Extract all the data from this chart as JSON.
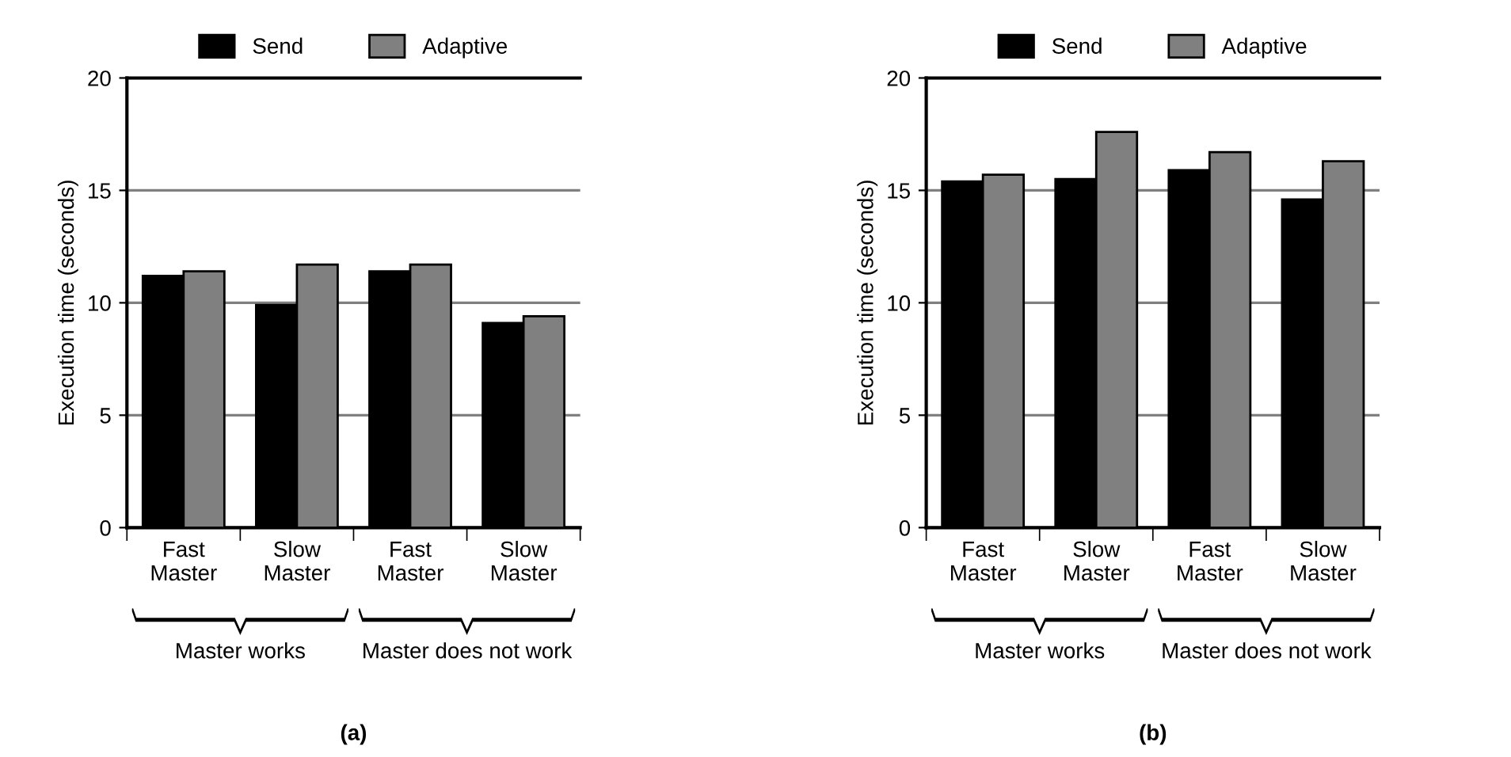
{
  "chart_data": [
    {
      "type": "bar",
      "title": "(a)",
      "ylabel": "Execution time (seconds)",
      "categories": [
        "Fast\nMaster",
        "Slow\nMaster",
        "Fast\nMaster",
        "Slow\nMaster"
      ],
      "series": [
        {
          "name": "Send",
          "color": "#000000",
          "values": [
            11.2,
            9.9,
            11.4,
            9.1
          ]
        },
        {
          "name": "Adaptive",
          "color": "#808080",
          "values": [
            11.4,
            11.7,
            11.7,
            9.4
          ]
        }
      ],
      "annotations": [
        "Master works",
        "Master does not work"
      ],
      "ylim": [
        0,
        20
      ],
      "yticks": [
        0,
        5,
        10,
        15,
        20
      ],
      "grid": "y",
      "legend": "top"
    },
    {
      "type": "bar",
      "title": "(b)",
      "ylabel": "Execution time (seconds)",
      "categories": [
        "Fast\nMaster",
        "Slow\nMaster",
        "Fast\nMaster",
        "Slow\nMaster"
      ],
      "series": [
        {
          "name": "Send",
          "color": "#000000",
          "values": [
            15.4,
            15.5,
            15.9,
            14.6
          ]
        },
        {
          "name": "Adaptive",
          "color": "#808080",
          "values": [
            15.7,
            17.6,
            16.7,
            16.3
          ]
        }
      ],
      "annotations": [
        "Master works",
        "Master does not work"
      ],
      "ylim": [
        0,
        20
      ],
      "yticks": [
        0,
        5,
        10,
        15,
        20
      ],
      "grid": "y",
      "legend": "top"
    }
  ]
}
